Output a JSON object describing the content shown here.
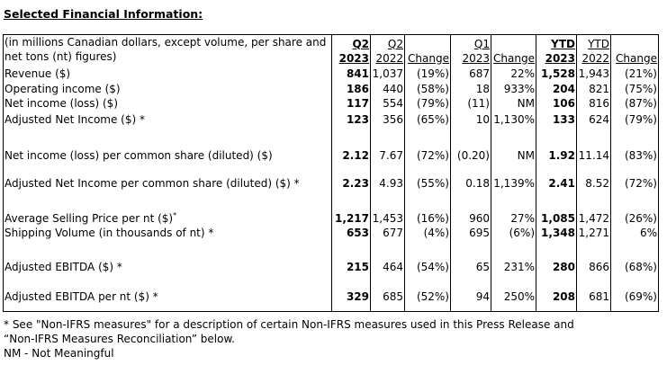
{
  "title": "Selected Financial Information:",
  "header": {
    "label": "(in millions Canadian dollars, except volume, per share and net tons (nt) figures)",
    "columns": [
      {
        "l1": "Q2",
        "l2": "2023",
        "bold": true
      },
      {
        "l1": "Q2",
        "l2": "2022",
        "bold": false
      },
      {
        "l1": "",
        "l2": "Change",
        "bold": false
      },
      {
        "l1": "Q1",
        "l2": "2023",
        "bold": false
      },
      {
        "l1": "",
        "l2": "Change",
        "bold": false
      },
      {
        "l1": "YTD",
        "l2": "2023",
        "bold": true
      },
      {
        "l1": "YTD",
        "l2": "2022",
        "bold": false
      },
      {
        "l1": "",
        "l2": "Change",
        "bold": false
      }
    ]
  },
  "rows": [
    {
      "label": "Revenue ($)",
      "values": [
        "841",
        "1,037",
        "(19%)",
        "687",
        "22%",
        "1,528",
        "1,943",
        "(21%)"
      ]
    },
    {
      "label": "Operating income ($)",
      "values": [
        "186",
        "440",
        "(58%)",
        "18",
        "933%",
        "204",
        "821",
        "(75%)"
      ]
    },
    {
      "label": "Net income (loss) ($)",
      "values": [
        "117",
        "554",
        "(79%)",
        "(11)",
        "NM",
        "106",
        "816",
        "(87%)"
      ]
    },
    {
      "label": "Adjusted Net Income ($) *",
      "values": [
        "123",
        "356",
        "(65%)",
        "10",
        "1,130%",
        "133",
        "624",
        "(79%)"
      ]
    },
    {
      "label": "Net income (loss) per common share (diluted) ($)",
      "values": [
        "2.12",
        "7.67",
        "(72%)",
        "(0.20)",
        "NM",
        "1.92",
        "11.14",
        "(83%)"
      ]
    },
    {
      "label": "Adjusted Net Income per common share (diluted) ($) *",
      "values": [
        "2.23",
        "4.93",
        "(55%)",
        "0.18",
        "1,139%",
        "2.41",
        "8.52",
        "(72%)"
      ]
    },
    {
      "label": "Average Selling Price per nt ($)",
      "sup": "*",
      "values": [
        "1,217",
        "1,453",
        "(16%)",
        "960",
        "27%",
        "1,085",
        "1,472",
        "(26%)"
      ]
    },
    {
      "label": "Shipping Volume (in thousands of nt) *",
      "values": [
        "653",
        "677",
        "(4%)",
        "695",
        "(6%)",
        "1,348",
        "1,271",
        "6%"
      ]
    },
    {
      "label": "Adjusted EBITDA ($) *",
      "values": [
        "215",
        "464",
        "(54%)",
        "65",
        "231%",
        "280",
        "866",
        "(68%)"
      ]
    },
    {
      "label": "Adjusted EBITDA per nt ($) *",
      "values": [
        "329",
        "685",
        "(52%)",
        "94",
        "250%",
        "208",
        "681",
        "(69%)"
      ]
    }
  ],
  "footnotes": [
    "* See \"Non-IFRS measures\" for a description of certain Non-IFRS measures used in this Press Release and",
    "“Non-IFRS Measures Reconciliation” below.",
    "NM - Not Meaningful"
  ]
}
